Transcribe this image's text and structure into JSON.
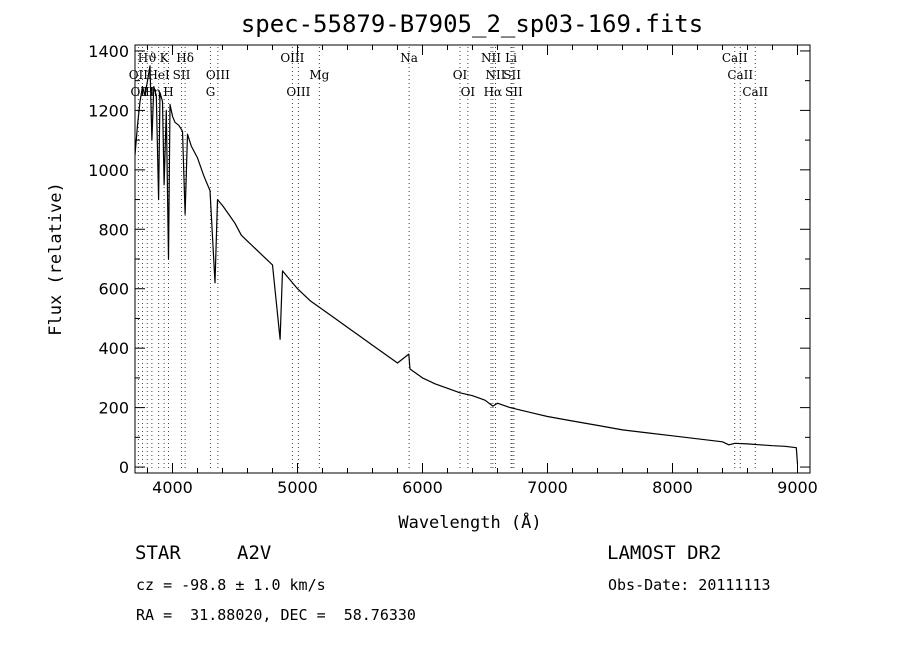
{
  "chart_data": {
    "type": "line",
    "title": "spec-55879-B7905_2_sp03-169.fits",
    "xlabel": "Wavelength (Å)",
    "ylabel": "Flux (relative)",
    "xlim": [
      3700,
      9100
    ],
    "ylim": [
      -20,
      1420
    ],
    "x_ticks": [
      4000,
      5000,
      6000,
      7000,
      8000,
      9000
    ],
    "y_ticks": [
      0,
      200,
      400,
      600,
      800,
      1000,
      1200,
      1400
    ],
    "grid": false,
    "line_color": "#000000",
    "series": [
      {
        "values_x": [
          3700,
          3720,
          3740,
          3760,
          3780,
          3800,
          3820,
          3835,
          3850,
          3870,
          3889,
          3900,
          3920,
          3933,
          3950,
          3968,
          3980,
          4000,
          4020,
          4050,
          4080,
          4101,
          4120,
          4150,
          4200,
          4250,
          4300,
          4340,
          4360,
          4400,
          4450,
          4500,
          4550,
          4600,
          4700,
          4800,
          4861,
          4880,
          4900,
          5000,
          5100,
          5200,
          5300,
          5400,
          5500,
          5600,
          5700,
          5800,
          5890,
          5900,
          6000,
          6100,
          6200,
          6300,
          6400,
          6500,
          6563,
          6600,
          6700,
          6800,
          6900,
          7000,
          7200,
          7400,
          7600,
          7800,
          8000,
          8200,
          8400,
          8450,
          8500,
          8600,
          8700,
          8800,
          8900,
          8990,
          9000
        ],
        "values_y": [
          1050,
          1150,
          1230,
          1280,
          1250,
          1300,
          1350,
          1100,
          1280,
          1250,
          900,
          1260,
          1230,
          950,
          1200,
          700,
          1220,
          1180,
          1160,
          1150,
          1130,
          850,
          1120,
          1080,
          1040,
          980,
          930,
          620,
          900,
          880,
          850,
          820,
          780,
          760,
          720,
          680,
          430,
          660,
          650,
          600,
          560,
          530,
          500,
          470,
          440,
          410,
          380,
          350,
          380,
          330,
          300,
          280,
          265,
          250,
          240,
          225,
          205,
          215,
          200,
          190,
          180,
          170,
          155,
          140,
          125,
          115,
          105,
          95,
          85,
          75,
          80,
          78,
          75,
          72,
          70,
          65,
          10
        ]
      }
    ],
    "line_markers": [
      {
        "label": "Hϑ",
        "x": 3798,
        "row": 1,
        "color": "#444444"
      },
      {
        "label": "K",
        "x": 3933,
        "row": 1,
        "color": "#444444"
      },
      {
        "label": "Hδ",
        "x": 4101,
        "row": 1,
        "color": "#444444"
      },
      {
        "label": "OII",
        "x": 3727,
        "row": 2,
        "color": "#444444"
      },
      {
        "label": "HeI",
        "x": 3889,
        "row": 2,
        "color": "#444444"
      },
      {
        "label": "SII",
        "x": 4072,
        "row": 2,
        "color": "#444444"
      },
      {
        "label": "OIII",
        "x": 4363,
        "row": 2,
        "color": "#444444"
      },
      {
        "label": "OIII",
        "x": 3760,
        "row": 3,
        "color": "#444444"
      },
      {
        "label": "Hη",
        "x": 3835,
        "row": 3,
        "color": "#444444"
      },
      {
        "label": "H",
        "x": 3968,
        "row": 3,
        "color": "#444444"
      },
      {
        "label": "G",
        "x": 4304,
        "row": 3,
        "color": "#444444"
      },
      {
        "label": "OIII",
        "x": 4959,
        "row": 1,
        "color": "#cc0000"
      },
      {
        "label": "Mg",
        "x": 5175,
        "row": 2,
        "color": "#cc0000"
      },
      {
        "label": "OIII",
        "x": 5007,
        "row": 3,
        "color": "#cc0000"
      },
      {
        "label": "Na",
        "x": 5893,
        "row": 1,
        "color": "#cc0000"
      },
      {
        "label": "OI",
        "x": 6300,
        "row": 2,
        "color": "#cc0000"
      },
      {
        "label": "OI",
        "x": 6363,
        "row": 3,
        "color": "#cc0000"
      },
      {
        "label": "NII",
        "x": 6548,
        "row": 1,
        "color": "#cc0000"
      },
      {
        "label": "Li",
        "x": 6708,
        "row": 1,
        "color": "#cc0000"
      },
      {
        "label": "NII",
        "x": 6584,
        "row": 2,
        "color": "#cc0000"
      },
      {
        "label": "SII",
        "x": 6717,
        "row": 2,
        "color": "#cc0000"
      },
      {
        "label": "Hα",
        "x": 6563,
        "row": 3,
        "color": "#cc0000"
      },
      {
        "label": "SII",
        "x": 6731,
        "row": 3,
        "color": "#cc0000"
      },
      {
        "label": "CaII",
        "x": 8498,
        "row": 1,
        "color": "#cc0000"
      },
      {
        "label": "CaII",
        "x": 8542,
        "row": 2,
        "color": "#cc0000"
      },
      {
        "label": "CaII",
        "x": 8662,
        "row": 3,
        "color": "#cc0000"
      }
    ]
  },
  "info": {
    "object_class": "STAR",
    "subclass": "A2V",
    "survey": "LAMOST DR2",
    "cz": "cz = -98.8 ± 1.0 km/s",
    "obs_date": "Obs-Date: 20111113",
    "coords": "RA =  31.88020, DEC =  58.76330"
  }
}
